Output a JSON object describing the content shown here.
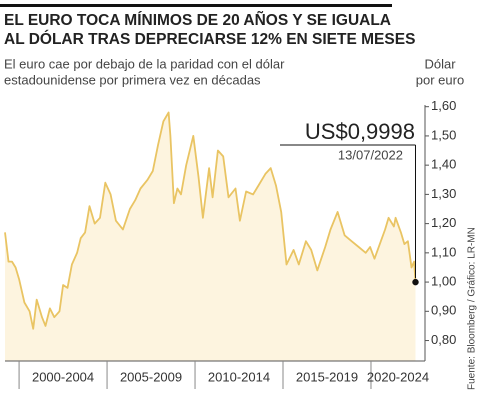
{
  "chart_data": {
    "type": "area",
    "title": [
      "EL EURO TOCA MÍNIMOS DE 20 AÑOS Y SE IGUALA",
      "AL DÓLAR TRAS DEPRECIARSE 12% EN SIETE MESES"
    ],
    "subtitle": [
      "El euro cae por debajo de la paridad con el dólar",
      "estadounidense por primera vez en décadas"
    ],
    "y_label": [
      "Dólar",
      "por euro"
    ],
    "annotation": {
      "value_label": "US$0,9998",
      "date": "13/07/2022"
    },
    "source": "Fuente: Bloomberg / Gráfico: LR-MN",
    "categories": [
      "2000-2004",
      "2005-2009",
      "2010-2014",
      "2015-2019",
      "2020-2024"
    ],
    "xticks": [
      2000,
      2005,
      2010,
      2015,
      2020
    ],
    "xlim": [
      1999.2,
      2023.07
    ],
    "ylim": [
      0.73,
      1.64
    ],
    "yticks": [
      {
        "value": 0.8,
        "label": "0,80"
      },
      {
        "value": 0.9,
        "label": "0,90"
      },
      {
        "value": 1.0,
        "label": "1,00"
      },
      {
        "value": 1.1,
        "label": "1,10"
      },
      {
        "value": 1.2,
        "label": "1,20"
      },
      {
        "value": 1.3,
        "label": "1,30"
      },
      {
        "value": 1.4,
        "label": "1,40"
      },
      {
        "value": 1.5,
        "label": "1,50"
      },
      {
        "value": 1.6,
        "label": "1,60"
      }
    ],
    "color": "#e9c463",
    "fill": "#fdf4df",
    "x": [
      1999.2,
      1999.4,
      1999.6,
      1999.8,
      2000.0,
      2000.3,
      2000.6,
      2000.8,
      2001.0,
      2001.3,
      2001.5,
      2001.75,
      2002.0,
      2002.3,
      2002.5,
      2002.75,
      2003.0,
      2003.3,
      2003.5,
      2003.75,
      2004.0,
      2004.3,
      2004.6,
      2004.9,
      2005.2,
      2005.5,
      2005.9,
      2006.3,
      2006.6,
      2006.9,
      2007.3,
      2007.6,
      2007.9,
      2008.2,
      2008.5,
      2008.6,
      2008.8,
      2009.0,
      2009.2,
      2009.5,
      2009.9,
      2010.2,
      2010.45,
      2010.8,
      2011.0,
      2011.3,
      2011.6,
      2011.9,
      2012.3,
      2012.55,
      2012.9,
      2013.3,
      2013.6,
      2014.0,
      2014.3,
      2014.6,
      2014.9,
      2015.2,
      2015.6,
      2015.9,
      2016.3,
      2016.6,
      2016.95,
      2017.4,
      2017.7,
      2018.1,
      2018.5,
      2018.9,
      2019.3,
      2019.7,
      2019.95,
      2020.2,
      2020.5,
      2020.8,
      2021.0,
      2021.3,
      2021.4,
      2021.7,
      2021.9,
      2022.1,
      2022.3,
      2022.45,
      2022.53
    ],
    "values": [
      1.17,
      1.07,
      1.07,
      1.05,
      1.01,
      0.93,
      0.9,
      0.84,
      0.94,
      0.88,
      0.85,
      0.91,
      0.88,
      0.9,
      0.99,
      0.98,
      1.06,
      1.1,
      1.15,
      1.17,
      1.26,
      1.2,
      1.22,
      1.34,
      1.3,
      1.21,
      1.18,
      1.25,
      1.28,
      1.32,
      1.35,
      1.38,
      1.47,
      1.55,
      1.58,
      1.5,
      1.27,
      1.32,
      1.3,
      1.4,
      1.5,
      1.36,
      1.22,
      1.39,
      1.29,
      1.45,
      1.43,
      1.29,
      1.32,
      1.21,
      1.31,
      1.3,
      1.33,
      1.37,
      1.39,
      1.33,
      1.24,
      1.06,
      1.11,
      1.06,
      1.14,
      1.11,
      1.04,
      1.12,
      1.18,
      1.24,
      1.16,
      1.14,
      1.12,
      1.1,
      1.12,
      1.08,
      1.13,
      1.18,
      1.22,
      1.19,
      1.22,
      1.17,
      1.13,
      1.14,
      1.05,
      1.07,
      0.9998
    ]
  }
}
